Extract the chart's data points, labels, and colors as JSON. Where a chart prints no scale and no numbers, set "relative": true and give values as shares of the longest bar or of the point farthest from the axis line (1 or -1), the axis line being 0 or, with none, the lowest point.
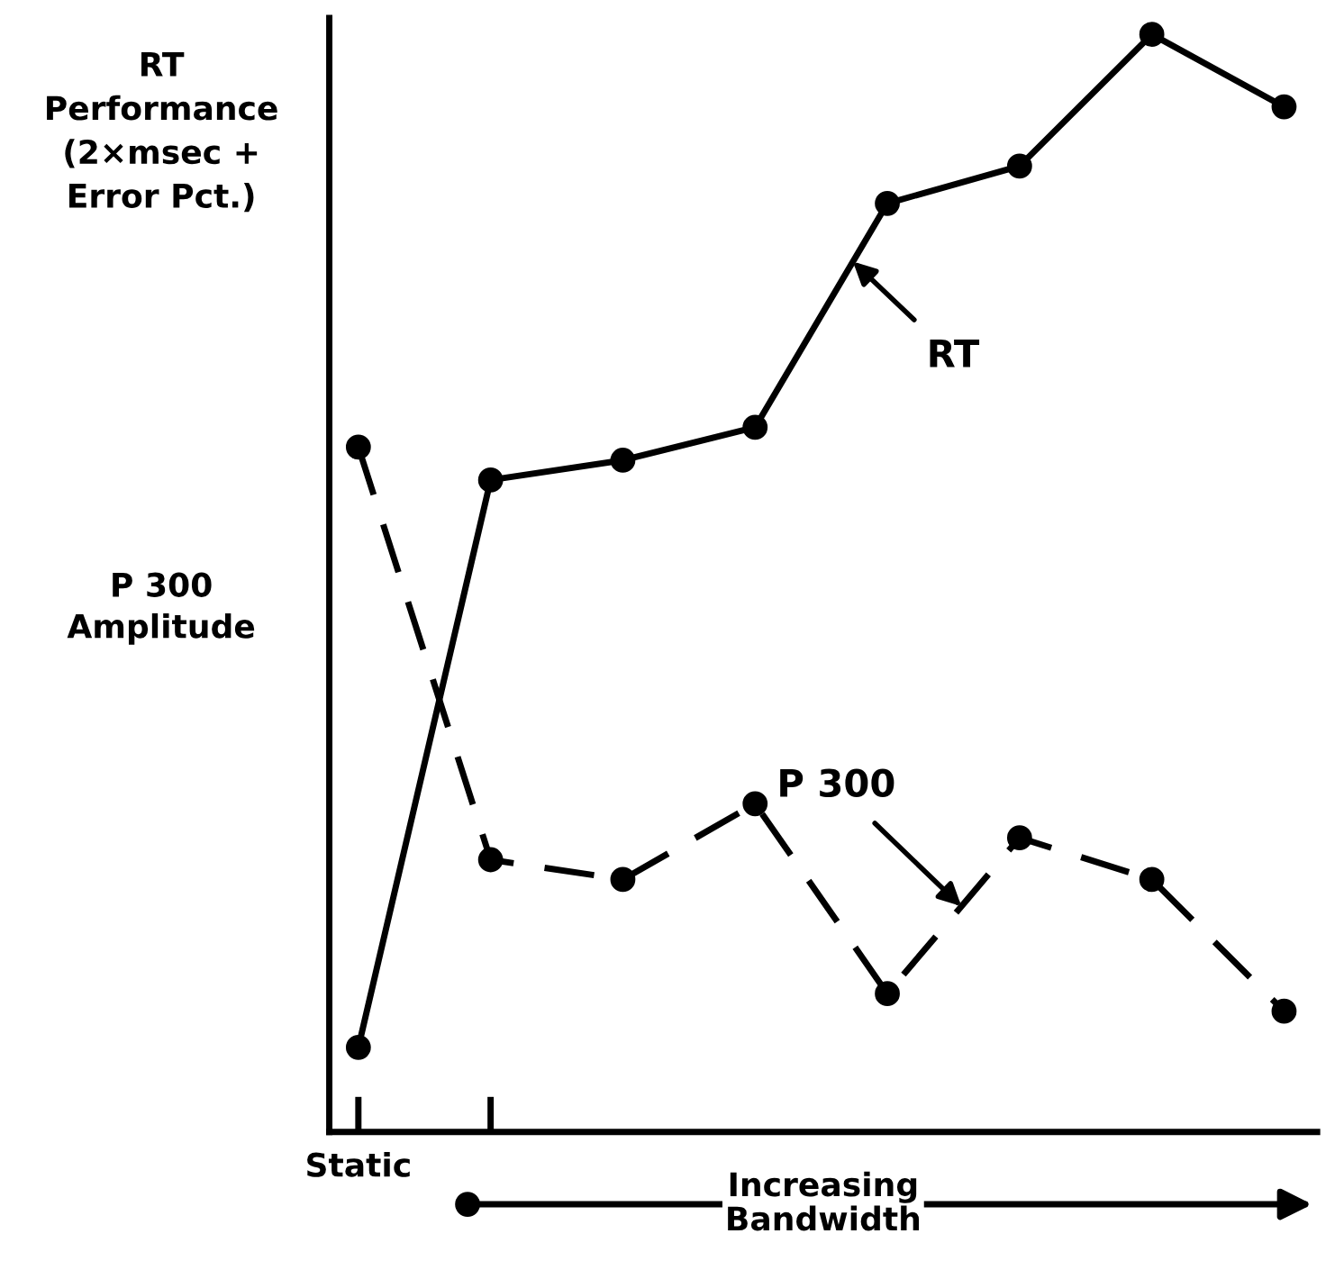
{
  "chart_data": {
    "type": "line",
    "relative": true,
    "categories": [
      null,
      null,
      null,
      null,
      null,
      null,
      null,
      null
    ],
    "ylabel": "RT\nPerformance\n(2×msec +\nError Pct.)",
    "series": [
      {
        "name": "RT",
        "color": "#000000",
        "line_style": "solid",
        "values": [
          0.077,
          0.594,
          0.612,
          0.642,
          0.846,
          0.88,
          1,
          0.934
        ]
      },
      {
        "name": "P 300",
        "color": "#000000",
        "line_style": "dashed",
        "values": [
          0.624,
          0.248,
          0.23,
          0.299,
          0.126,
          0.268,
          0.23,
          0.11
        ]
      }
    ],
    "annotations": [
      "Static",
      "P 300\nAmplitude",
      "Increasing\nBandwidth"
    ],
    "marker": "circle",
    "grid": false,
    "legend": false
  }
}
